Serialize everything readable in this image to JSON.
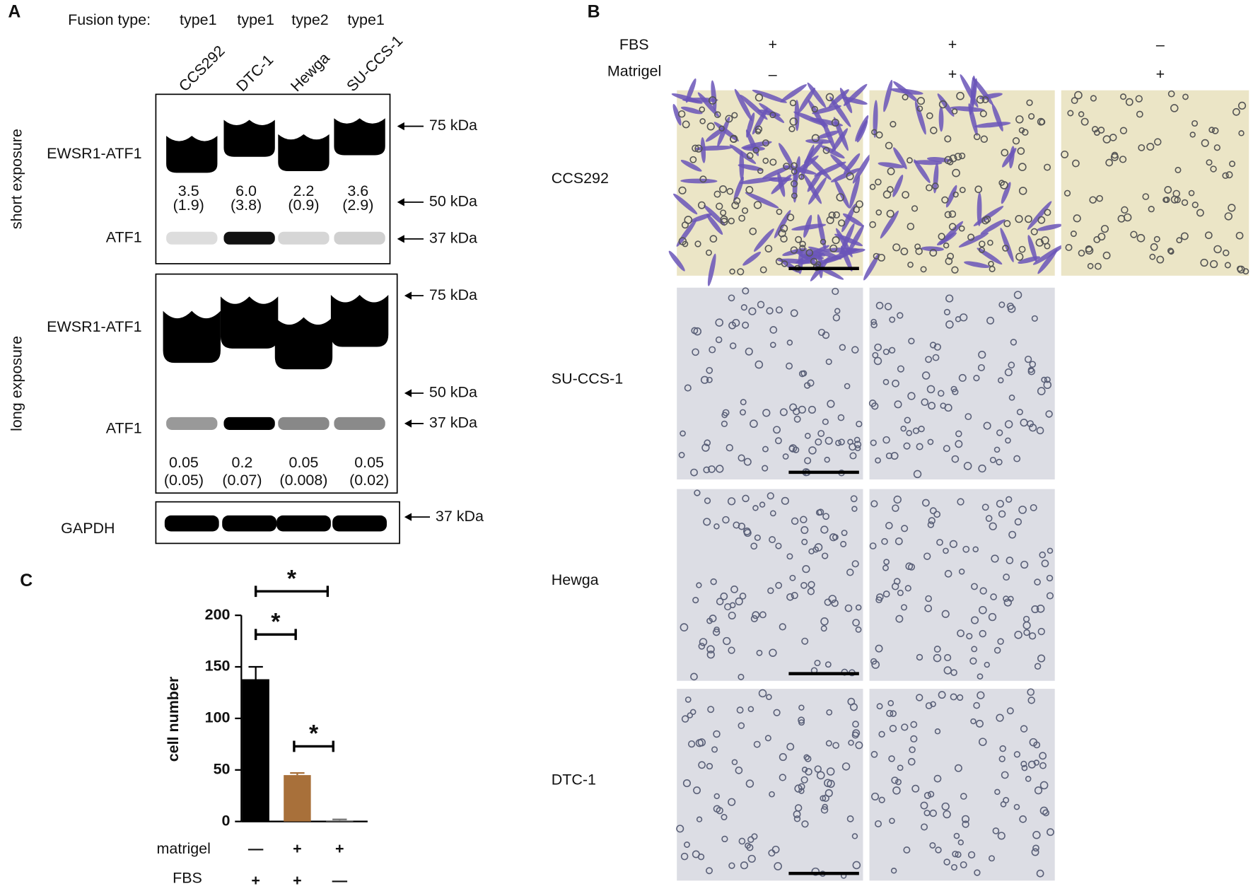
{
  "panel_a": {
    "label": "A",
    "fusion_label": "Fusion type:",
    "lanes": [
      {
        "name": "CCS292",
        "fusion": "type1"
      },
      {
        "name": "DTC-1",
        "fusion": "type1"
      },
      {
        "name": "Hewga",
        "fusion": "type2"
      },
      {
        "name": "SU-CCS-1",
        "fusion": "type1"
      }
    ],
    "exposures": [
      {
        "label": "short exposure",
        "bands": [
          "EWSR1-ATF1",
          "ATF1"
        ],
        "markers": [
          "75 kDa",
          "50 kDa",
          "37 kDa"
        ],
        "ratios": [
          {
            "value": "3.5",
            "sd": "(1.9)"
          },
          {
            "value": "6.0",
            "sd": "(3.8)"
          },
          {
            "value": "2.2",
            "sd": "(0.9)"
          },
          {
            "value": "3.6",
            "sd": "(2.9)"
          }
        ]
      },
      {
        "label": "long exposure",
        "bands": [
          "EWSR1-ATF1",
          "ATF1"
        ],
        "markers": [
          "75 kDa",
          "50 kDa",
          "37 kDa"
        ],
        "ratios": [
          {
            "value": "0.05",
            "sd": "(0.05)"
          },
          {
            "value": "0.2",
            "sd": "(0.07)"
          },
          {
            "value": "0.05",
            "sd": "(0.008)"
          },
          {
            "value": "0.05",
            "sd": "(0.02)"
          }
        ]
      }
    ],
    "loading": {
      "label": "GAPDH",
      "marker": "37 kDa"
    }
  },
  "panel_b": {
    "label": "B",
    "conditions": [
      {
        "name": "FBS",
        "values": [
          "+",
          "+",
          "–"
        ]
      },
      {
        "name": "Matrigel",
        "values": [
          "–",
          "+",
          "+"
        ]
      }
    ],
    "cell_lines": [
      "CCS292",
      "SU-CCS-1",
      "Hewga",
      "DTC-1"
    ]
  },
  "chart_data": {
    "type": "bar",
    "panel_label": "C",
    "y_label": "cell number",
    "categories": [
      null,
      null,
      null
    ],
    "values": [
      138,
      45,
      1
    ],
    "errors": [
      12,
      2,
      1
    ],
    "colors": [
      "#000000",
      "#a8703a",
      "#777777"
    ],
    "ylim": [
      0,
      200
    ],
    "yticks": [
      0,
      50,
      100,
      150,
      200
    ],
    "conditions": [
      {
        "name": "matrigel",
        "values": [
          "—",
          "+",
          "+"
        ]
      },
      {
        "name": "FBS",
        "values": [
          "+",
          "+",
          "—"
        ]
      }
    ],
    "significance": [
      "*",
      "*",
      "*"
    ]
  }
}
